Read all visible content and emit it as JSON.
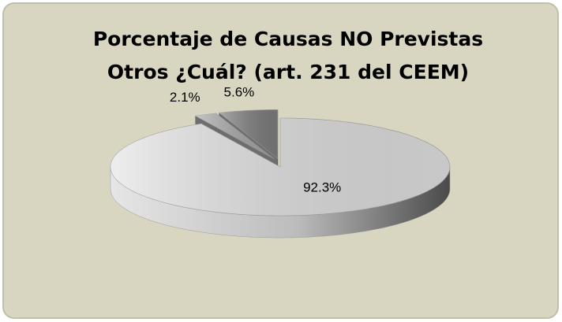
{
  "chart_data": {
    "type": "pie3d",
    "title": "Porcentaje de Causas NO Previstas",
    "subtitle": "Otros ¿Cuál? (art. 231 del CEEM)",
    "values": [
      92.3,
      2.1,
      5.6
    ],
    "value_labels": [
      "92.3%",
      "2.1%",
      "5.6%"
    ],
    "colors": [
      "#e4e4e4",
      "#a9a9a9",
      "#7f7f7f"
    ],
    "exploded": [
      false,
      true,
      true
    ]
  }
}
